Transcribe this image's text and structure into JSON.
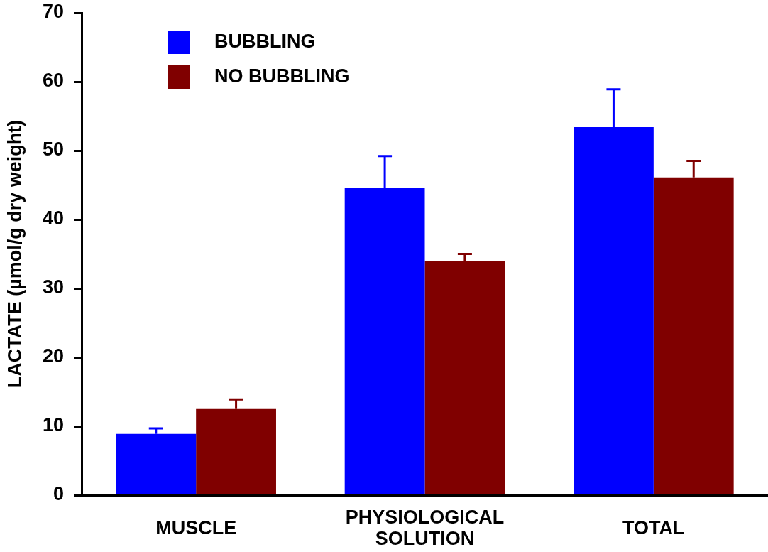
{
  "chart_data": {
    "type": "bar",
    "ylabel": "LACTATE (µmol/g dry weight)",
    "categories": [
      "MUSCLE",
      "PHYSIOLOGICAL SOLUTION",
      "TOTAL"
    ],
    "series": [
      {
        "name": "BUBBLING",
        "color": "#0000ff",
        "values": [
          8.9,
          44.6,
          53.4
        ],
        "errors": [
          [
            8.9,
            9.7
          ],
          [
            44.6,
            49.2
          ],
          [
            53.4,
            58.9
          ]
        ]
      },
      {
        "name": "NO BUBBLING",
        "color": "#800000",
        "values": [
          12.5,
          34.0,
          46.1
        ],
        "errors": [
          [
            12.5,
            13.9
          ],
          [
            34.0,
            35.0
          ],
          [
            46.1,
            48.5
          ]
        ]
      }
    ],
    "ylim": [
      0,
      70
    ],
    "yticks": [
      0,
      10,
      20,
      30,
      40,
      50,
      60,
      70
    ],
    "legend": "top left"
  }
}
